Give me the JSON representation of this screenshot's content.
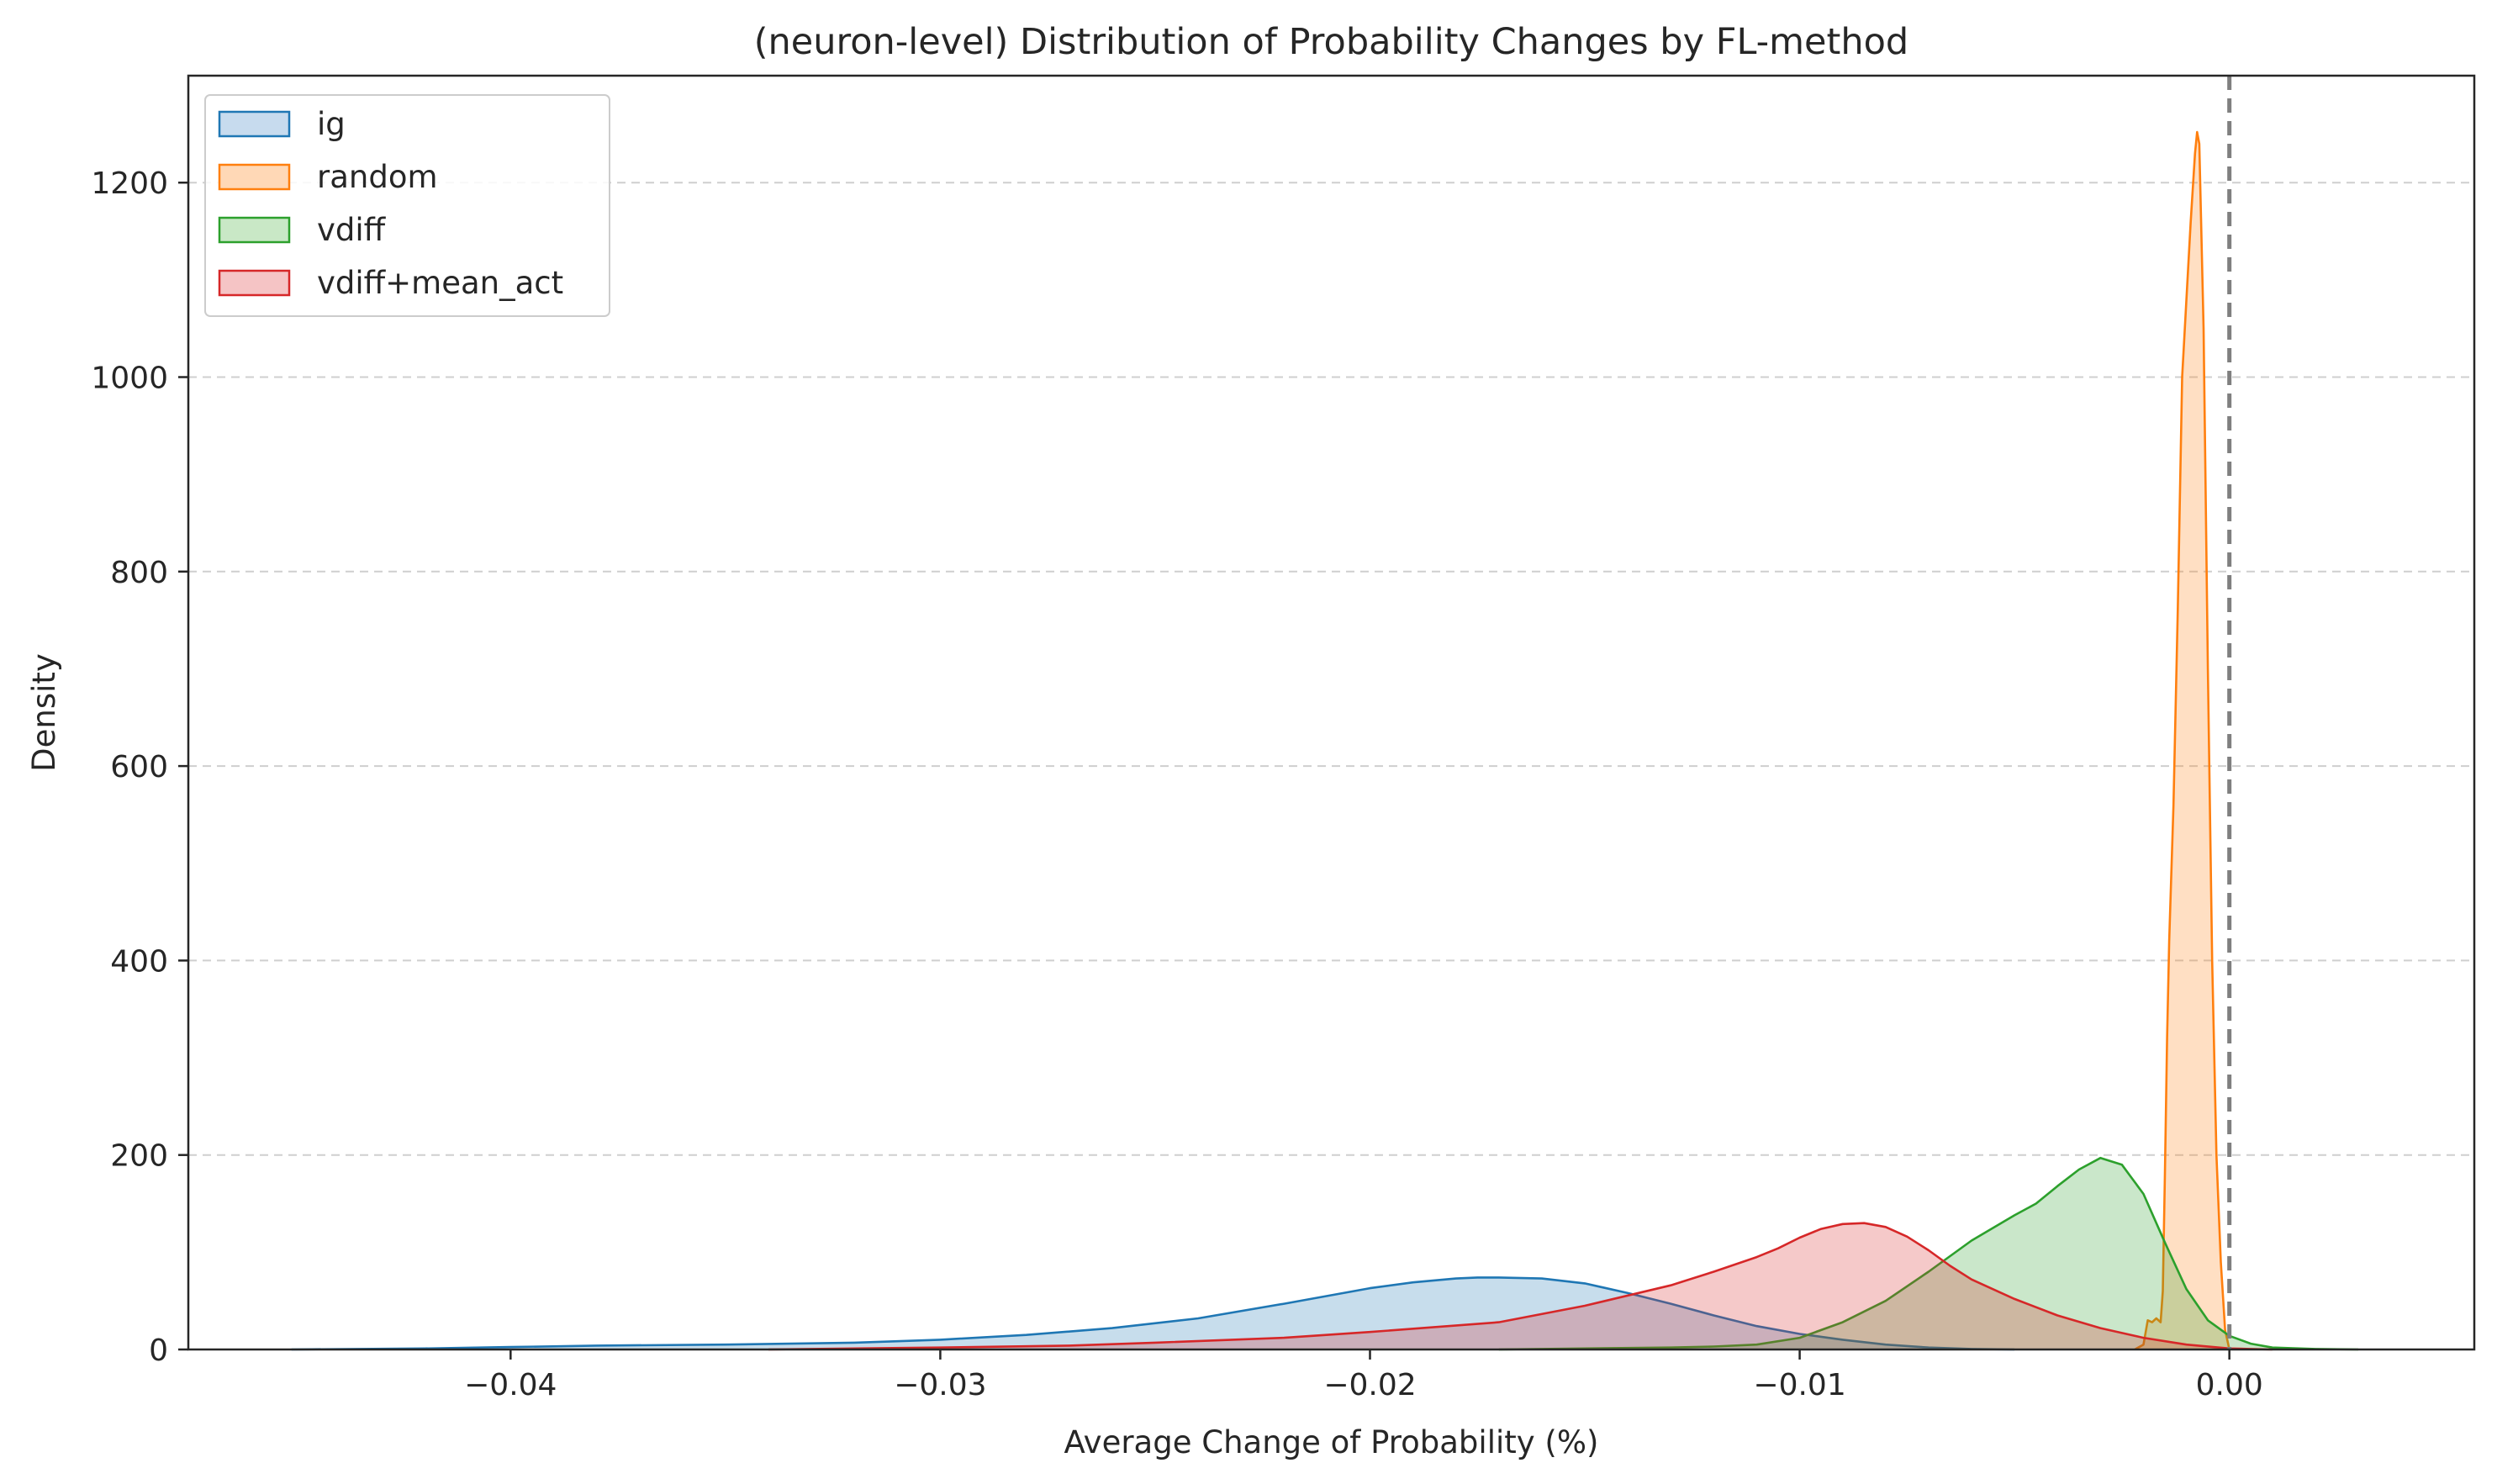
{
  "chart_data": {
    "type": "area",
    "title": "(neuron-level) Distribution of Probability Changes by FL-method",
    "xlabel": "Average Change of Probability (%)",
    "ylabel": "Density",
    "xlim": [
      -0.0475,
      0.0057
    ],
    "ylim": [
      0,
      1310
    ],
    "xticks": [
      -0.04,
      -0.03,
      -0.02,
      -0.01,
      0.0
    ],
    "xtick_labels": [
      "−0.04",
      "−0.03",
      "−0.02",
      "−0.01",
      "0.00"
    ],
    "yticks": [
      0,
      200,
      400,
      600,
      800,
      1000,
      1200
    ],
    "ytick_labels": [
      "0",
      "200",
      "400",
      "600",
      "800",
      "1000",
      "1200"
    ],
    "grid": "y-dashed",
    "legend_position": "top-left",
    "reference_line_x": 0.0,
    "series": [
      {
        "name": "ig",
        "color": "#1f77b4",
        "fill": "#c7dbee",
        "points": [
          [
            -0.0451,
            0
          ],
          [
            -0.042,
            1
          ],
          [
            -0.04,
            2.5
          ],
          [
            -0.038,
            4
          ],
          [
            -0.035,
            5
          ],
          [
            -0.032,
            7
          ],
          [
            -0.03,
            10
          ],
          [
            -0.028,
            15
          ],
          [
            -0.026,
            22
          ],
          [
            -0.024,
            32
          ],
          [
            -0.022,
            47
          ],
          [
            -0.02,
            63
          ],
          [
            -0.019,
            69
          ],
          [
            -0.018,
            73
          ],
          [
            -0.0175,
            74
          ],
          [
            -0.017,
            74
          ],
          [
            -0.016,
            73
          ],
          [
            -0.015,
            68
          ],
          [
            -0.014,
            58
          ],
          [
            -0.013,
            47
          ],
          [
            -0.012,
            35
          ],
          [
            -0.011,
            24
          ],
          [
            -0.01,
            16
          ],
          [
            -0.009,
            10
          ],
          [
            -0.008,
            5
          ],
          [
            -0.007,
            2
          ],
          [
            -0.006,
            0.5
          ],
          [
            -0.005,
            0
          ]
        ]
      },
      {
        "name": "random",
        "color": "#ff7f0e",
        "fill": "#ffd8b6",
        "points": [
          [
            -0.0022,
            0
          ],
          [
            -0.002,
            5
          ],
          [
            -0.0019,
            30
          ],
          [
            -0.0018,
            28
          ],
          [
            -0.0017,
            32
          ],
          [
            -0.0016,
            28
          ],
          [
            -0.00155,
            60
          ],
          [
            -0.0015,
            180
          ],
          [
            -0.00145,
            320
          ],
          [
            -0.0014,
            420
          ],
          [
            -0.0013,
            560
          ],
          [
            -0.0012,
            760
          ],
          [
            -0.0011,
            1000
          ],
          [
            -0.001,
            1080
          ],
          [
            -0.0009,
            1160
          ],
          [
            -0.0008,
            1230
          ],
          [
            -0.00075,
            1252
          ],
          [
            -0.0007,
            1240
          ],
          [
            -0.0006,
            1050
          ],
          [
            -0.0005,
            700
          ],
          [
            -0.0004,
            400
          ],
          [
            -0.0003,
            200
          ],
          [
            -0.0002,
            90
          ],
          [
            -0.0001,
            20
          ],
          [
            0.0,
            0
          ]
        ]
      },
      {
        "name": "vdiff",
        "color": "#2ca02c",
        "fill": "#c9e8c6",
        "points": [
          [
            -0.017,
            0
          ],
          [
            -0.015,
            1
          ],
          [
            -0.013,
            2
          ],
          [
            -0.012,
            3
          ],
          [
            -0.011,
            5
          ],
          [
            -0.01,
            12
          ],
          [
            -0.009,
            28
          ],
          [
            -0.008,
            50
          ],
          [
            -0.007,
            80
          ],
          [
            -0.006,
            112
          ],
          [
            -0.005,
            138
          ],
          [
            -0.0045,
            150
          ],
          [
            -0.004,
            168
          ],
          [
            -0.0035,
            185
          ],
          [
            -0.003,
            197
          ],
          [
            -0.0025,
            190
          ],
          [
            -0.002,
            160
          ],
          [
            -0.0015,
            110
          ],
          [
            -0.001,
            62
          ],
          [
            -0.0005,
            30
          ],
          [
            0.0,
            14
          ],
          [
            0.0005,
            6
          ],
          [
            0.001,
            2
          ],
          [
            0.002,
            0.5
          ],
          [
            0.003,
            0
          ]
        ]
      },
      {
        "name": "vdiff+mean_act",
        "color": "#d62728",
        "fill": "#f5c4c5",
        "points": [
          [
            -0.034,
            0
          ],
          [
            -0.03,
            2
          ],
          [
            -0.027,
            4
          ],
          [
            -0.025,
            7
          ],
          [
            -0.022,
            12
          ],
          [
            -0.02,
            18
          ],
          [
            -0.017,
            28
          ],
          [
            -0.015,
            45
          ],
          [
            -0.013,
            66
          ],
          [
            -0.012,
            80
          ],
          [
            -0.011,
            95
          ],
          [
            -0.0105,
            104
          ],
          [
            -0.01,
            115
          ],
          [
            -0.0095,
            124
          ],
          [
            -0.009,
            129
          ],
          [
            -0.0085,
            130
          ],
          [
            -0.008,
            126
          ],
          [
            -0.0075,
            116
          ],
          [
            -0.007,
            102
          ],
          [
            -0.0065,
            86
          ],
          [
            -0.006,
            72
          ],
          [
            -0.005,
            52
          ],
          [
            -0.004,
            35
          ],
          [
            -0.003,
            22
          ],
          [
            -0.002,
            12
          ],
          [
            -0.001,
            5
          ],
          [
            0.0,
            1
          ],
          [
            0.001,
            0
          ]
        ]
      }
    ]
  }
}
